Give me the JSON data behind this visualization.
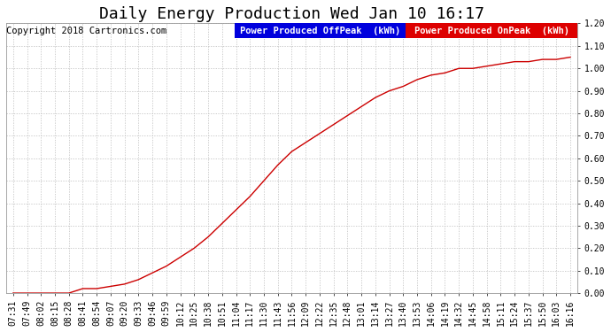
{
  "title": "Daily Energy Production Wed Jan 10 16:17",
  "copyright": "Copyright 2018 Cartronics.com",
  "legend_offpeak_label": "Power Produced OffPeak  (kWh)",
  "legend_onpeak_label": "Power Produced OnPeak  (kWh)",
  "legend_offpeak_color": "#0000dd",
  "legend_onpeak_color": "#dd0000",
  "line_color": "#cc0000",
  "background_color": "#ffffff",
  "plot_bg_color": "#ffffff",
  "grid_color": "#bbbbbb",
  "ylim": [
    0.0,
    1.2
  ],
  "yticks": [
    0.0,
    0.1,
    0.2,
    0.3,
    0.4,
    0.5,
    0.6,
    0.7,
    0.8,
    0.9,
    1.0,
    1.1,
    1.2
  ],
  "x_labels": [
    "07:31",
    "07:49",
    "08:02",
    "08:15",
    "08:28",
    "08:41",
    "08:54",
    "09:07",
    "09:20",
    "09:33",
    "09:46",
    "09:59",
    "10:12",
    "10:25",
    "10:38",
    "10:51",
    "11:04",
    "11:17",
    "11:30",
    "11:43",
    "11:56",
    "12:09",
    "12:22",
    "12:35",
    "12:48",
    "13:01",
    "13:14",
    "13:27",
    "13:40",
    "13:53",
    "14:06",
    "14:19",
    "14:32",
    "14:45",
    "14:58",
    "15:11",
    "15:24",
    "15:37",
    "15:50",
    "16:03",
    "16:16"
  ],
  "y_values": [
    0.0,
    0.0,
    0.0,
    0.0,
    0.0,
    0.02,
    0.02,
    0.03,
    0.04,
    0.06,
    0.09,
    0.12,
    0.16,
    0.2,
    0.25,
    0.31,
    0.37,
    0.43,
    0.5,
    0.57,
    0.63,
    0.67,
    0.71,
    0.75,
    0.79,
    0.83,
    0.87,
    0.9,
    0.92,
    0.95,
    0.97,
    0.98,
    1.0,
    1.0,
    1.01,
    1.02,
    1.03,
    1.03,
    1.04,
    1.04,
    1.05
  ],
  "title_fontsize": 13,
  "tick_fontsize": 7,
  "copyright_fontsize": 7.5,
  "legend_fontsize": 7.5
}
